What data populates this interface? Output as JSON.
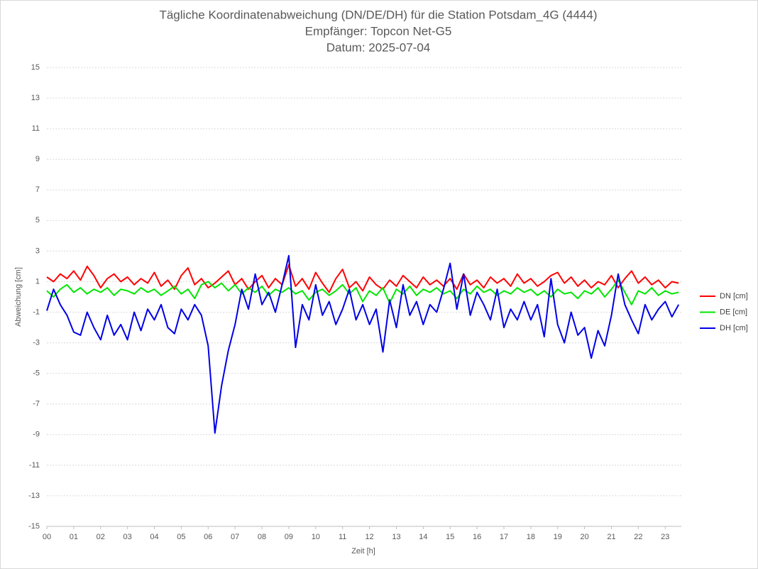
{
  "chart_data": {
    "type": "line",
    "title": "Tägliche Koordinatenabweichung (DN/DE/DH) für die Station Potsdam_4G (4444)",
    "subtitle": "Empfänger: Topcon Net-G5",
    "date": "Datum: 2025-07-04",
    "x_label": "Zeit [h]",
    "y_label": "Abweichung [cm]",
    "xlim": [
      0,
      23.6
    ],
    "ylim": [
      -15,
      15
    ],
    "xticks": [
      {
        "value": 0,
        "label": "00"
      },
      {
        "value": 1,
        "label": "01"
      },
      {
        "value": 2,
        "label": "02"
      },
      {
        "value": 3,
        "label": "03"
      },
      {
        "value": 4,
        "label": "04"
      },
      {
        "value": 5,
        "label": "05"
      },
      {
        "value": 6,
        "label": "06"
      },
      {
        "value": 7,
        "label": "07"
      },
      {
        "value": 8,
        "label": "08"
      },
      {
        "value": 9,
        "label": "09"
      },
      10,
      11,
      12,
      13,
      14,
      15,
      16,
      17,
      18,
      19,
      20,
      21,
      22,
      23
    ],
    "yticks": [
      -15,
      -13,
      -11,
      -9,
      -7,
      -5,
      -3,
      -1,
      1,
      3,
      5,
      7,
      9,
      11,
      13,
      15
    ],
    "grid": true,
    "legend": "right",
    "x": [
      0,
      0.25,
      0.5,
      0.75,
      1,
      1.25,
      1.5,
      1.75,
      2,
      2.25,
      2.5,
      2.75,
      3,
      3.25,
      3.5,
      3.75,
      4,
      4.25,
      4.5,
      4.75,
      5,
      5.25,
      5.5,
      5.75,
      6,
      6.25,
      6.5,
      6.75,
      7,
      7.25,
      7.5,
      7.75,
      8,
      8.25,
      8.5,
      8.75,
      9,
      9.25,
      9.5,
      9.75,
      10,
      10.25,
      10.5,
      10.75,
      11,
      11.25,
      11.5,
      11.75,
      12,
      12.25,
      12.5,
      12.75,
      13,
      13.25,
      13.5,
      13.75,
      14,
      14.25,
      14.5,
      14.75,
      15,
      15.25,
      15.5,
      15.75,
      16,
      16.25,
      16.5,
      16.75,
      17,
      17.25,
      17.5,
      17.75,
      18,
      18.25,
      18.5,
      18.75,
      19,
      19.25,
      19.5,
      19.75,
      20,
      20.25,
      20.5,
      20.75,
      21,
      21.25,
      21.5,
      21.75,
      22,
      22.25,
      22.5,
      22.75,
      23,
      23.25,
      23.5
    ],
    "series": [
      {
        "name": "DN [cm]",
        "color": "#ff0000",
        "values": [
          1.3,
          1.0,
          1.5,
          1.2,
          1.7,
          1.1,
          2.0,
          1.4,
          0.6,
          1.2,
          1.5,
          1.0,
          1.3,
          0.8,
          1.2,
          0.9,
          1.6,
          0.7,
          1.1,
          0.5,
          1.4,
          1.9,
          0.8,
          1.2,
          0.6,
          0.9,
          1.3,
          1.7,
          0.8,
          1.2,
          0.5,
          1.0,
          1.4,
          0.6,
          1.2,
          0.8,
          2.1,
          0.7,
          1.2,
          0.5,
          1.6,
          0.9,
          0.3,
          1.2,
          1.8,
          0.6,
          1.0,
          0.4,
          1.3,
          0.8,
          0.5,
          1.1,
          0.7,
          1.4,
          1.0,
          0.6,
          1.3,
          0.8,
          1.1,
          0.7,
          1.2,
          0.5,
          1.5,
          0.8,
          1.1,
          0.6,
          1.3,
          0.9,
          1.2,
          0.7,
          1.5,
          0.9,
          1.2,
          0.7,
          1.0,
          1.4,
          1.6,
          0.9,
          1.3,
          0.7,
          1.1,
          0.6,
          1.0,
          0.8,
          1.4,
          0.6,
          1.2,
          1.7,
          0.9,
          1.3,
          0.8,
          1.1,
          0.6,
          1.0,
          0.9
        ]
      },
      {
        "name": "DE [cm]",
        "color": "#00e600",
        "values": [
          0.4,
          0.0,
          0.5,
          0.8,
          0.3,
          0.6,
          0.2,
          0.5,
          0.3,
          0.6,
          0.1,
          0.5,
          0.4,
          0.2,
          0.6,
          0.3,
          0.5,
          0.1,
          0.4,
          0.7,
          0.2,
          0.5,
          -0.1,
          0.8,
          1.0,
          0.6,
          0.9,
          0.4,
          0.8,
          0.2,
          0.6,
          0.3,
          0.7,
          0.1,
          0.5,
          0.3,
          0.6,
          0.2,
          0.4,
          -0.2,
          0.3,
          0.5,
          0.1,
          0.4,
          0.8,
          0.2,
          0.6,
          -0.3,
          0.4,
          0.1,
          0.6,
          -0.4,
          0.5,
          0.2,
          0.7,
          0.1,
          0.5,
          0.3,
          0.6,
          0.2,
          0.4,
          -0.1,
          0.5,
          0.2,
          0.7,
          0.3,
          0.5,
          0.1,
          0.4,
          0.2,
          0.6,
          0.3,
          0.5,
          0.1,
          0.4,
          0.0,
          0.5,
          0.2,
          0.3,
          -0.1,
          0.4,
          0.2,
          0.6,
          0.0,
          0.5,
          1.1,
          0.3,
          -0.5,
          0.4,
          0.2,
          0.6,
          0.1,
          0.4,
          0.2,
          0.3
        ]
      },
      {
        "name": "DH [cm]",
        "color": "#0000e6",
        "values": [
          -0.9,
          0.5,
          -0.5,
          -1.2,
          -2.3,
          -2.5,
          -1.0,
          -2.0,
          -2.8,
          -1.2,
          -2.5,
          -1.8,
          -2.8,
          -1.0,
          -2.2,
          -0.8,
          -1.5,
          -0.5,
          -2.0,
          -2.4,
          -0.8,
          -1.5,
          -0.5,
          -1.2,
          -3.2,
          -8.9,
          -5.8,
          -3.5,
          -1.8,
          0.5,
          -0.8,
          1.5,
          -0.5,
          0.3,
          -1.0,
          0.8,
          2.7,
          -3.3,
          -0.5,
          -1.5,
          0.8,
          -1.2,
          -0.3,
          -1.8,
          -0.8,
          0.5,
          -1.5,
          -0.5,
          -1.8,
          -0.8,
          -3.6,
          -0.2,
          -2.0,
          0.8,
          -1.2,
          -0.3,
          -1.8,
          -0.5,
          -1.0,
          0.5,
          2.2,
          -0.8,
          1.5,
          -1.2,
          0.3,
          -0.5,
          -1.5,
          0.5,
          -2.0,
          -0.8,
          -1.5,
          -0.3,
          -1.5,
          -0.5,
          -2.6,
          1.2,
          -1.8,
          -3.0,
          -1.0,
          -2.5,
          -2.0,
          -4.0,
          -2.2,
          -3.2,
          -1.2,
          1.5,
          -0.5,
          -1.5,
          -2.4,
          -0.5,
          -1.5,
          -0.8,
          -0.3,
          -1.3,
          -0.5
        ]
      }
    ]
  }
}
